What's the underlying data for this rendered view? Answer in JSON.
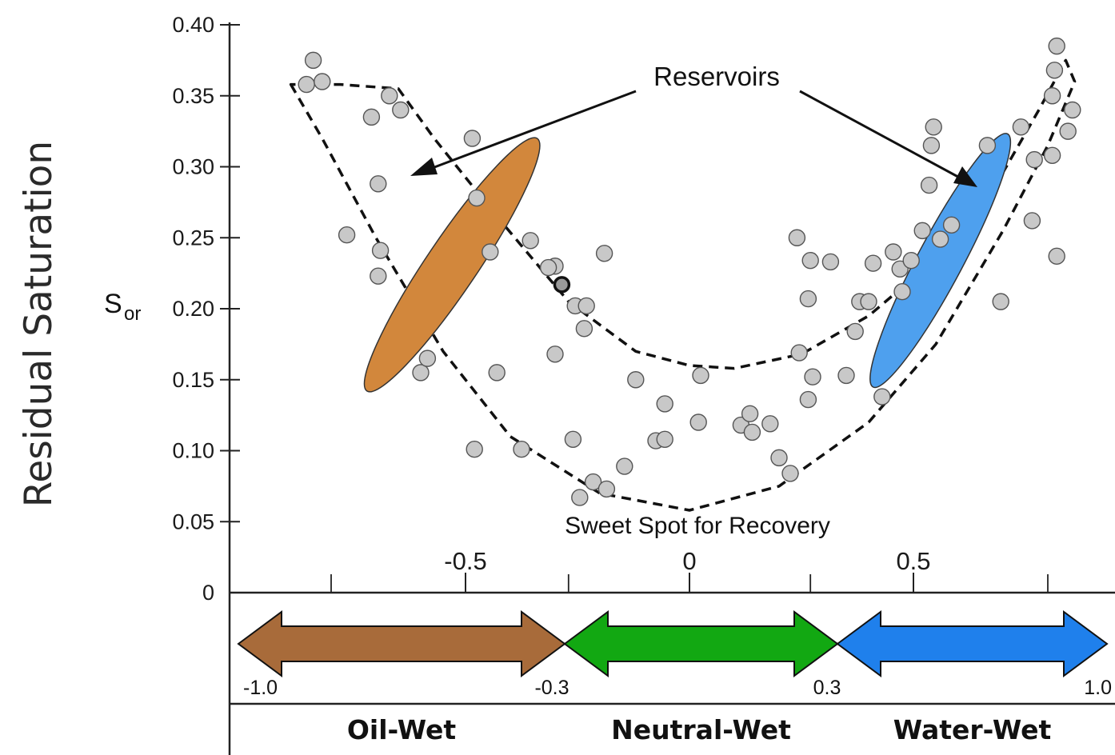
{
  "chart_data": {
    "type": "scatter",
    "ylabel": "Residual Saturation",
    "ylabel_inner": "S",
    "ylabel_inner_sub": "or",
    "ylim": [
      0,
      0.4
    ],
    "xlim": [
      -1.05,
      1.05
    ],
    "y_ticks": [
      "0",
      "0.05",
      "0.10",
      "0.15",
      "0.20",
      "0.25",
      "0.30",
      "0.35",
      "0.40"
    ],
    "y_tick_values": [
      0,
      0.05,
      0.1,
      0.15,
      0.2,
      0.25,
      0.3,
      0.35,
      0.4
    ],
    "x_ticks": [
      "-0.5",
      "0",
      "0.5"
    ],
    "x_tick_values": [
      -0.5,
      0,
      0.5
    ],
    "x_minor_ticks": [
      -0.8,
      -0.27,
      0.27,
      0.8
    ],
    "points": [
      [
        -0.84,
        0.375
      ],
      [
        -0.855,
        0.358
      ],
      [
        -0.82,
        0.36
      ],
      [
        -0.71,
        0.335
      ],
      [
        -0.67,
        0.35
      ],
      [
        -0.645,
        0.34
      ],
      [
        -0.485,
        0.32
      ],
      [
        -0.475,
        0.278
      ],
      [
        -0.445,
        0.24
      ],
      [
        -0.695,
        0.288
      ],
      [
        -0.765,
        0.252
      ],
      [
        -0.69,
        0.241
      ],
      [
        -0.695,
        0.223
      ],
      [
        -0.355,
        0.248
      ],
      [
        -0.3,
        0.23
      ],
      [
        -0.315,
        0.229
      ],
      [
        -0.19,
        0.239
      ],
      [
        -0.255,
        0.202
      ],
      [
        -0.23,
        0.202
      ],
      [
        -0.235,
        0.186
      ],
      [
        -0.3,
        0.168
      ],
      [
        -0.43,
        0.155
      ],
      [
        -0.6,
        0.155
      ],
      [
        -0.585,
        0.165
      ],
      [
        -0.48,
        0.101
      ],
      [
        -0.375,
        0.101
      ],
      [
        -0.26,
        0.108
      ],
      [
        -0.215,
        0.078
      ],
      [
        -0.185,
        0.073
      ],
      [
        -0.245,
        0.067
      ],
      [
        -0.145,
        0.089
      ],
      [
        -0.12,
        0.15
      ],
      [
        -0.055,
        0.133
      ],
      [
        -0.075,
        0.107
      ],
      [
        -0.055,
        0.108
      ],
      [
        0.025,
        0.153
      ],
      [
        0.02,
        0.12
      ],
      [
        0.115,
        0.118
      ],
      [
        0.135,
        0.126
      ],
      [
        0.14,
        0.113
      ],
      [
        0.18,
        0.119
      ],
      [
        0.2,
        0.095
      ],
      [
        0.225,
        0.084
      ],
      [
        0.24,
        0.25
      ],
      [
        0.27,
        0.234
      ],
      [
        0.315,
        0.233
      ],
      [
        0.265,
        0.207
      ],
      [
        0.245,
        0.169
      ],
      [
        0.275,
        0.152
      ],
      [
        0.265,
        0.136
      ],
      [
        0.35,
        0.153
      ],
      [
        0.41,
        0.232
      ],
      [
        0.455,
        0.24
      ],
      [
        0.47,
        0.228
      ],
      [
        0.495,
        0.234
      ],
      [
        0.52,
        0.255
      ],
      [
        0.56,
        0.249
      ],
      [
        0.585,
        0.259
      ],
      [
        0.38,
        0.205
      ],
      [
        0.4,
        0.205
      ],
      [
        0.37,
        0.184
      ],
      [
        0.475,
        0.212
      ],
      [
        0.43,
        0.138
      ],
      [
        0.535,
        0.287
      ],
      [
        0.54,
        0.315
      ],
      [
        0.545,
        0.328
      ],
      [
        0.665,
        0.315
      ],
      [
        0.74,
        0.328
      ],
      [
        0.77,
        0.305
      ],
      [
        0.765,
        0.262
      ],
      [
        0.695,
        0.205
      ],
      [
        0.82,
        0.385
      ],
      [
        0.815,
        0.368
      ],
      [
        0.81,
        0.35
      ],
      [
        0.855,
        0.34
      ],
      [
        0.845,
        0.325
      ],
      [
        0.81,
        0.308
      ],
      [
        0.82,
        0.237
      ]
    ],
    "highlight_point": [
      -0.285,
      0.217
    ],
    "envelope_outer": [
      [
        -0.89,
        0.358
      ],
      [
        -0.82,
        0.32
      ],
      [
        -0.7,
        0.25
      ],
      [
        -0.55,
        0.17
      ],
      [
        -0.4,
        0.11
      ],
      [
        -0.2,
        0.07
      ],
      [
        0,
        0.058
      ],
      [
        0.2,
        0.075
      ],
      [
        0.4,
        0.12
      ],
      [
        0.55,
        0.175
      ],
      [
        0.7,
        0.255
      ],
      [
        0.8,
        0.315
      ],
      [
        0.86,
        0.36
      ],
      [
        0.84,
        0.375
      ],
      [
        0.78,
        0.34
      ],
      [
        0.68,
        0.285
      ],
      [
        0.55,
        0.235
      ],
      [
        0.4,
        0.195
      ],
      [
        0.25,
        0.168
      ],
      [
        0.1,
        0.158
      ],
      [
        0,
        0.16
      ],
      [
        -0.12,
        0.17
      ],
      [
        -0.27,
        0.205
      ],
      [
        -0.43,
        0.265
      ],
      [
        -0.57,
        0.32
      ],
      [
        -0.65,
        0.355
      ],
      [
        -0.78,
        0.358
      ],
      [
        -0.89,
        0.358
      ]
    ],
    "reservoir_ellipses": [
      {
        "cx": -0.53,
        "cy": 0.231,
        "rx": 0.34,
        "ry": 0.018,
        "angle_deg": -56,
        "color": "#d2873c"
      },
      {
        "cx": 0.56,
        "cy": 0.234,
        "rx": 0.32,
        "ry": 0.016,
        "angle_deg": -62,
        "color": "#4ea0ee"
      }
    ],
    "annotations": {
      "reservoirs": "Reservoirs",
      "sweet_spot": "Sweet Spot for Recovery"
    },
    "wettability_bands": [
      {
        "label": "Oil-Wet",
        "start": "-1.0",
        "end": "-0.3",
        "color": "#a86b3a"
      },
      {
        "label": "Neutral-Wet",
        "start": "-0.3",
        "end": "0.3",
        "color": "#12a812"
      },
      {
        "label": "Water-Wet",
        "start": "0.3",
        "end": "1.0",
        "color": "#1f80ec"
      }
    ],
    "band_end_label": "1.0",
    "colors": {
      "point_fill": "#c8c8c8",
      "point_stroke": "#555555",
      "axis": "#222222"
    }
  }
}
